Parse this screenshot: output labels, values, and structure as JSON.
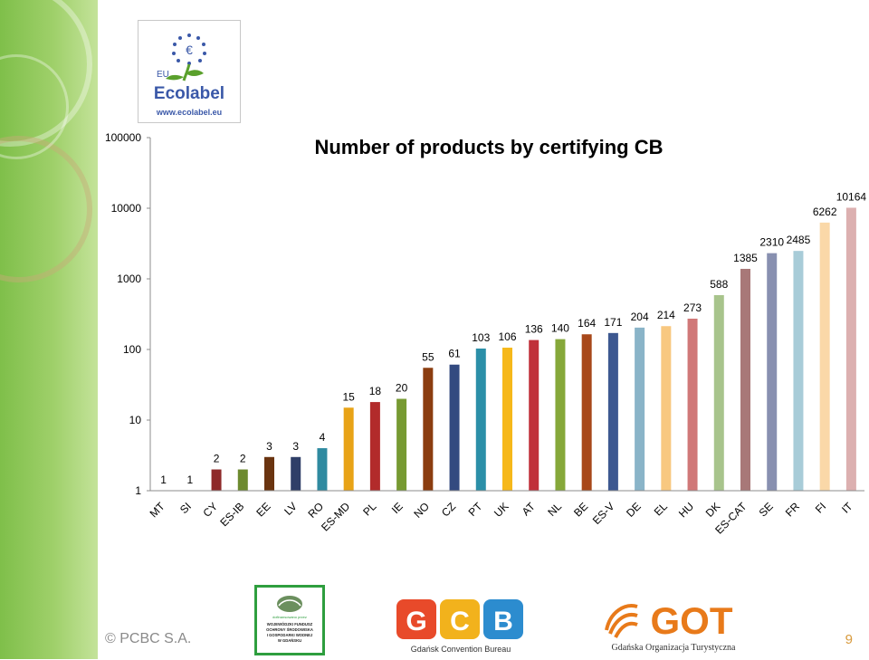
{
  "footer": {
    "copyright": "© PCBC S.A.",
    "page_number": "9"
  },
  "logos": {
    "ecolabel": {
      "eu": "EU",
      "name": "Ecolabel",
      "url": "www.ecolabel.eu"
    },
    "wfos": {
      "line1": "dofinansowano przez",
      "line2": "WOJEWÓDZKI FUNDUSZ",
      "line3": "OCHRONY ŚRODOWISKA",
      "line4": "I GOSPODARKI WODNEJ",
      "line5": "W GDAŃSKU"
    },
    "gcb": {
      "caption": "Gdańsk  Convention  Bureau"
    },
    "got": {
      "name": "GOT",
      "caption": "Gdańska Organizacja Turystyczna"
    }
  },
  "chart_data": {
    "type": "bar",
    "title": "Number of products by certifying CB",
    "scale": "log",
    "ylim": [
      1,
      100000
    ],
    "yticks": [
      "1",
      "10",
      "100",
      "1000",
      "10000",
      "100000"
    ],
    "categories": [
      "MT",
      "SI",
      "CY",
      "ES-IB",
      "EE",
      "LV",
      "RO",
      "ES-MD",
      "PL",
      "IE",
      "NO",
      "CZ",
      "PT",
      "UK",
      "AT",
      "NL",
      "BE",
      "ES-V",
      "DE",
      "EL",
      "HU",
      "DK",
      "ES-CAT",
      "SE",
      "FR",
      "FI",
      "IT"
    ],
    "values": [
      1,
      1,
      2,
      2,
      3,
      3,
      4,
      15,
      18,
      20,
      55,
      61,
      103,
      106,
      136,
      140,
      164,
      171,
      204,
      214,
      273,
      588,
      1385,
      2310,
      2485,
      6262,
      10164
    ],
    "colors": [
      "#6e7f33",
      "#3e5a8a",
      "#8e2a2a",
      "#6d8a2f",
      "#6a3410",
      "#2f3f68",
      "#2f8aa0",
      "#e8a317",
      "#b22b2b",
      "#779a32",
      "#8b3d10",
      "#334a80",
      "#2b8fa8",
      "#f6b81a",
      "#c0303a",
      "#86a83a",
      "#a8481a",
      "#3d5890",
      "#8ab4c8",
      "#f8c880",
      "#d07878",
      "#a8c48c",
      "#a87878",
      "#8890b0",
      "#a8ccd8",
      "#fad8a8",
      "#dcb0b0"
    ],
    "legend": "none",
    "grid": false
  }
}
